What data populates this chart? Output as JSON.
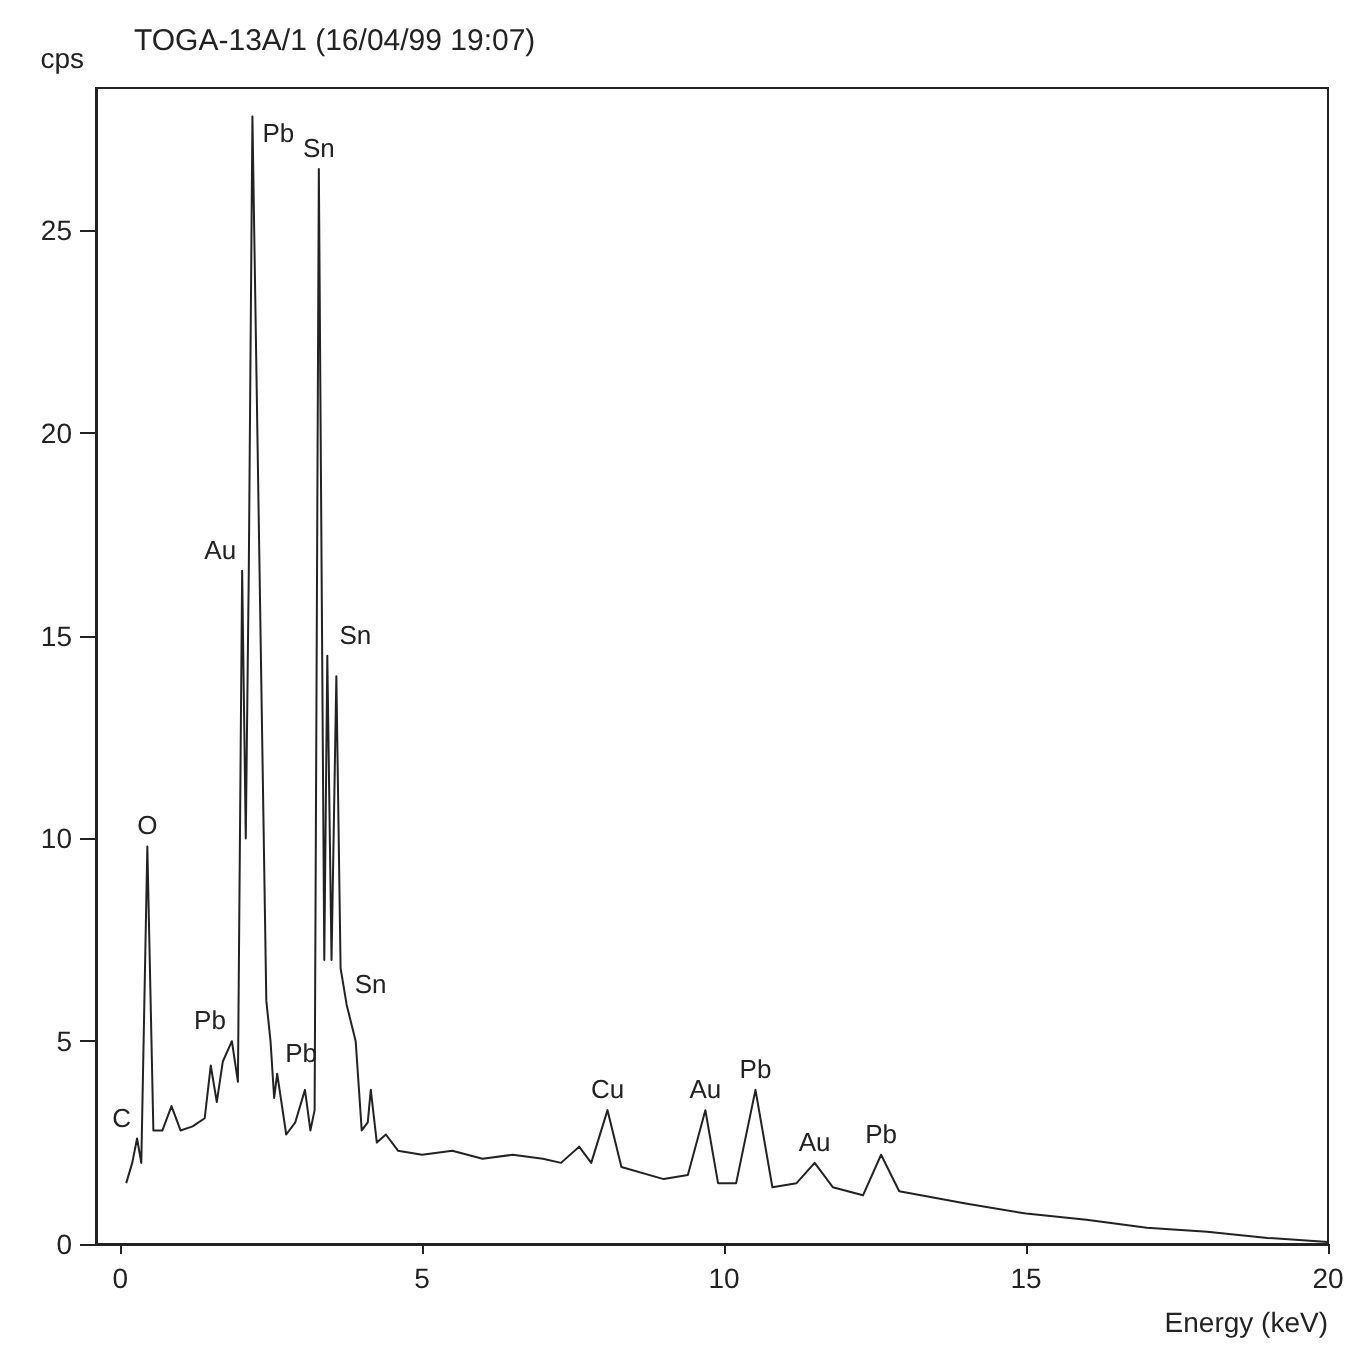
{
  "chart_data": {
    "type": "line",
    "title": "TOGA-13A/1 (16/04/99 19:07)",
    "xlabel": "Energy (keV)",
    "ylabel": "cps",
    "x": [
      0.1,
      0.2,
      0.28,
      0.35,
      0.45,
      0.55,
      0.7,
      0.85,
      1.0,
      1.2,
      1.4,
      1.5,
      1.6,
      1.7,
      1.85,
      1.95,
      2.02,
      2.08,
      2.13,
      2.19,
      2.42,
      2.49,
      2.55,
      2.6,
      2.75,
      2.9,
      3.06,
      3.15,
      3.22,
      3.29,
      3.38,
      3.43,
      3.5,
      3.58,
      3.65,
      3.75,
      3.9,
      4.0,
      4.1,
      4.15,
      4.25,
      4.4,
      4.6,
      5.0,
      5.5,
      6.0,
      6.5,
      7.0,
      7.3,
      7.6,
      7.8,
      8.07,
      8.3,
      9.0,
      9.4,
      9.69,
      9.9,
      10.2,
      10.52,
      10.8,
      11.2,
      11.5,
      11.8,
      12.3,
      12.6,
      12.9,
      14.0,
      15.0,
      16.0,
      17.0,
      18.0,
      19.0,
      20.0
    ],
    "series": [
      {
        "color": "#222222",
        "values": [
          1.5,
          2.0,
          2.6,
          2.0,
          9.8,
          2.8,
          2.8,
          3.4,
          2.8,
          2.9,
          3.1,
          4.4,
          3.5,
          4.5,
          5.0,
          4.0,
          16.6,
          10.0,
          16.6,
          27.8,
          6.0,
          5.0,
          3.6,
          4.2,
          2.7,
          3.0,
          3.8,
          2.8,
          3.3,
          26.5,
          7.0,
          14.5,
          7.0,
          14.0,
          6.8,
          5.9,
          5.0,
          2.8,
          3.0,
          3.8,
          2.5,
          2.7,
          2.3,
          2.2,
          2.3,
          2.1,
          2.2,
          2.1,
          2.0,
          2.4,
          2.0,
          3.3,
          1.9,
          1.6,
          1.7,
          3.3,
          1.5,
          1.5,
          3.8,
          1.4,
          1.5,
          2.0,
          1.4,
          1.2,
          2.2,
          1.3,
          1.0,
          0.75,
          0.6,
          0.4,
          0.3,
          0.15,
          0.05
        ]
      }
    ],
    "annotations": [
      {
        "text": "C",
        "x": 0.28,
        "y": 2.6
      },
      {
        "text": "O",
        "x": 0.45,
        "y": 9.8
      },
      {
        "text": "Pb",
        "x": 1.85,
        "y": 5.0
      },
      {
        "text": "Au",
        "x": 2.02,
        "y": 16.6
      },
      {
        "text": "Pb",
        "x": 2.19,
        "y": 27.8
      },
      {
        "text": "Pb",
        "x": 2.6,
        "y": 4.2
      },
      {
        "text": "Sn",
        "x": 3.29,
        "y": 26.5
      },
      {
        "text": "Sn",
        "x": 3.5,
        "y": 14.5
      },
      {
        "text": "Sn",
        "x": 3.75,
        "y": 5.9
      },
      {
        "text": "Cu",
        "x": 8.07,
        "y": 3.3
      },
      {
        "text": "Au",
        "x": 9.69,
        "y": 3.3
      },
      {
        "text": "Pb",
        "x": 10.52,
        "y": 3.8
      },
      {
        "text": "Au",
        "x": 11.5,
        "y": 2.0
      },
      {
        "text": "Pb",
        "x": 12.6,
        "y": 2.2
      }
    ],
    "xlim": [
      -0.4,
      20
    ],
    "xticks": [
      0,
      5,
      10,
      15,
      20
    ],
    "ylim": [
      0,
      28.5
    ],
    "yticks": [
      0,
      5,
      10,
      15,
      20,
      25
    ],
    "grid": false,
    "marker": "none",
    "line_style": "solid"
  }
}
